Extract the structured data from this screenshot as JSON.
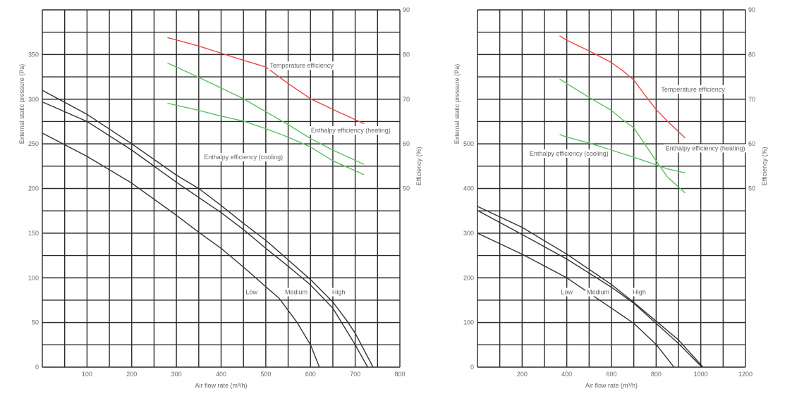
{
  "chart_data": [
    {
      "type": "line",
      "title": "",
      "xlabel": "Air flow rate (m³/h)",
      "ylabel": "External static pressure (Pa)",
      "y2label": "Efficiency (%)",
      "xlim": [
        0,
        800
      ],
      "ylim": [
        0,
        400
      ],
      "y2lim": [
        10,
        90
      ],
      "grid": true,
      "x_grid_step": 50,
      "y_grid_step": 25,
      "x_ticks": [
        100,
        200,
        300,
        400,
        500,
        600,
        700,
        800
      ],
      "y_ticks": [
        0,
        50,
        100,
        150,
        200,
        250,
        300,
        350
      ],
      "y2_ticks": [
        50,
        60,
        70,
        80,
        90
      ],
      "series": [
        {
          "name": "High",
          "axis": "pressure",
          "color": "#333333",
          "x": [
            0,
            100,
            200,
            300,
            350,
            400,
            450,
            500,
            550,
            600,
            650,
            680,
            700,
            740
          ],
          "y": [
            310,
            283,
            250,
            215,
            200,
            181,
            161,
            142,
            120,
            98,
            73,
            53,
            38,
            0
          ]
        },
        {
          "name": "Medium",
          "axis": "pressure",
          "color": "#333333",
          "x": [
            0,
            100,
            200,
            300,
            350,
            400,
            450,
            500,
            550,
            600,
            650,
            700,
            728
          ],
          "y": [
            297,
            275,
            243,
            207,
            190,
            173,
            154,
            133,
            113,
            92,
            66,
            25,
            0
          ]
        },
        {
          "name": "Low",
          "axis": "pressure",
          "color": "#333333",
          "x": [
            0,
            100,
            200,
            300,
            350,
            400,
            450,
            500,
            530,
            570,
            600,
            620
          ],
          "y": [
            262,
            236,
            206,
            170,
            151,
            133,
            112,
            90,
            77,
            50,
            25,
            0
          ]
        },
        {
          "name": "Temperature efficiency",
          "axis": "efficiency",
          "color": "#ee4444",
          "x": [
            280,
            350,
            400,
            450,
            500,
            550,
            600,
            650,
            720
          ],
          "y": [
            83.8,
            81.9,
            80.3,
            78.7,
            77.2,
            73.5,
            70.1,
            67.7,
            64.5
          ]
        },
        {
          "name": "Enthalpy efficiency (heating)",
          "axis": "efficiency",
          "color": "#5cc060",
          "x": [
            280,
            350,
            450,
            500,
            550,
            600,
            650,
            720
          ],
          "y": [
            78.1,
            74.9,
            70.1,
            67.2,
            64.3,
            61.2,
            58.6,
            55.4
          ]
        },
        {
          "name": "Enthalpy efficiency (cooling)",
          "axis": "efficiency",
          "color": "#5cc060",
          "x": [
            280,
            350,
            400,
            450,
            500,
            550,
            600,
            650,
            720
          ],
          "y": [
            69.1,
            67.5,
            66.2,
            65.1,
            63.4,
            61.5,
            59.3,
            56.2,
            53.1
          ]
        }
      ],
      "annotations": [
        {
          "text": "Temperature efficiency",
          "x": 580,
          "y_eff": 77.5
        },
        {
          "text": "Enthalpy efficiency (heating)",
          "x": 690,
          "y_eff": 63.0
        },
        {
          "text": "Enthalpy efficiency (cooling)",
          "x": 450,
          "y_eff": 57.0
        },
        {
          "text": "Low",
          "x": 468,
          "y": 84
        },
        {
          "text": "Medium",
          "x": 568,
          "y": 84
        },
        {
          "text": "High",
          "x": 663,
          "y": 84
        }
      ]
    },
    {
      "type": "line",
      "title": "",
      "xlabel": "Air flow rate (m³/h)",
      "ylabel": "External static pressure (Pa)",
      "y2label": "Efficiency (%)",
      "xlim": [
        0,
        1200
      ],
      "ylim": [
        0,
        800
      ],
      "y2lim": [
        10,
        90
      ],
      "grid": true,
      "x_grid_step": 100,
      "y_grid_step": 50,
      "x_ticks": [
        200,
        400,
        600,
        800,
        1000,
        1200
      ],
      "y_ticks": [
        0,
        100,
        200,
        300,
        400,
        500
      ],
      "y2_ticks": [
        50,
        60,
        70,
        80,
        90
      ],
      "series": [
        {
          "name": "High",
          "axis": "pressure",
          "color": "#333333",
          "x": [
            0,
            200,
            400,
            600,
            700,
            800,
            900,
            1010
          ],
          "y": [
            360,
            313,
            253,
            185,
            145,
            103,
            61,
            0
          ]
        },
        {
          "name": "Medium",
          "axis": "pressure",
          "color": "#333333",
          "x": [
            0,
            200,
            400,
            600,
            700,
            800,
            900,
            1005
          ],
          "y": [
            351,
            297,
            242,
            179,
            143,
            98,
            53,
            0
          ]
        },
        {
          "name": "Low",
          "axis": "pressure",
          "color": "#333333",
          "x": [
            0,
            200,
            400,
            600,
            700,
            800,
            880
          ],
          "y": [
            300,
            253,
            200,
            132,
            98,
            51,
            0
          ]
        },
        {
          "name": "Temperature efficiency",
          "axis": "efficiency",
          "color": "#ee4444",
          "x": [
            368,
            400,
            500,
            600,
            650,
            700,
            750,
            800,
            850,
            930
          ],
          "y": [
            84.2,
            83.2,
            80.8,
            78.2,
            76.4,
            74.3,
            70.9,
            67.7,
            65.1,
            61.3
          ]
        },
        {
          "name": "Enthalpy efficiency (heating)",
          "axis": "efficiency",
          "color": "#5cc060",
          "x": [
            368,
            400,
            500,
            600,
            650,
            700,
            750,
            800,
            850,
            930
          ],
          "y": [
            74.5,
            73.5,
            70.4,
            67.5,
            65.4,
            63.6,
            59.9,
            56.2,
            52.6,
            49.0
          ]
        },
        {
          "name": "Enthalpy efficiency (cooling)",
          "axis": "efficiency",
          "color": "#5cc060",
          "x": [
            368,
            400,
            500,
            600,
            700,
            800,
            850,
            930
          ],
          "y": [
            62.1,
            61.5,
            60.2,
            58.6,
            57.0,
            55.3,
            54.4,
            53.5
          ]
        }
      ],
      "annotations": [
        {
          "text": "Temperature efficiency",
          "x": 965,
          "y_eff": 72.2
        },
        {
          "text": "Enthalpy efficiency (heating)",
          "x": 1020,
          "y_eff": 59.0
        },
        {
          "text": "Enthalpy efficiency (cooling)",
          "x": 410,
          "y_eff": 57.8
        },
        {
          "text": "Low",
          "x": 400,
          "y": 168
        },
        {
          "text": "Medium",
          "x": 540,
          "y": 168
        },
        {
          "text": "High",
          "x": 725,
          "y": 168
        }
      ]
    }
  ]
}
